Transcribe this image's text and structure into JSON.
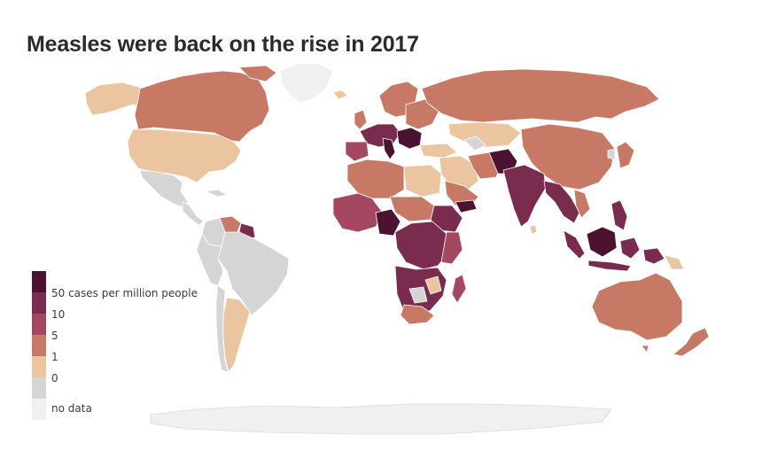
{
  "title": "Measles were back on the rise in 2017",
  "colors": {
    "cat_50": "#4b1330",
    "cat_10": "#7a2c4f",
    "cat_5": "#a34860",
    "cat_1": "#c87966",
    "cat_0": "#ebc4a0",
    "cat_zero_gray": "#d5d5d5",
    "no_data": "#f0f0f0",
    "border": "#ffffff"
  },
  "legend": {
    "items": [
      {
        "label": "50 cases per million people",
        "color": "#4b1330"
      },
      {
        "label": "10",
        "color": "#7a2c4f"
      },
      {
        "label": "5",
        "color": "#a34860"
      },
      {
        "label": "1",
        "color": "#c87966"
      },
      {
        "label": "0",
        "color": "#ebc4a0"
      },
      {
        "label": "",
        "color": "#d5d5d5"
      },
      {
        "label": "no data",
        "color": "#f0f0f0"
      }
    ]
  }
}
